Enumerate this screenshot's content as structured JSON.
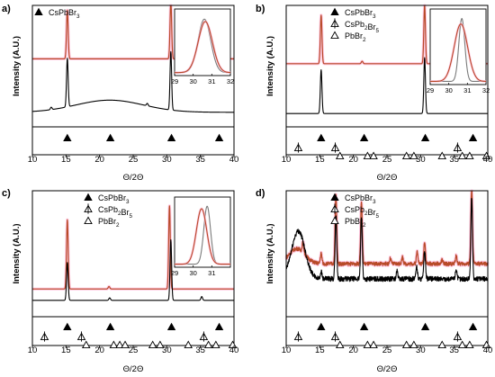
{
  "figure": {
    "panels": [
      {
        "label": "a)"
      },
      {
        "label": "b)"
      },
      {
        "label": "c)"
      },
      {
        "label": "d)"
      }
    ],
    "colors": {
      "raw_trace": "#000000",
      "fit_trace": "#b84a28",
      "fit_halo": "#ffb8d8",
      "inset_stroke": "#7a7a7a"
    }
  },
  "chart_data": [
    {
      "type": "line",
      "panel": "a)",
      "xlabel": "Θ/2Θ",
      "ylabel": "Intensity (A.U.)",
      "xlim": [
        10,
        40
      ],
      "xticks": [
        10,
        15,
        20,
        25,
        30,
        35,
        40
      ],
      "legend": [
        {
          "marker": "filled-triangle",
          "label": "CsPbBr3",
          "label_sub": {
            "text": "CsPbBr",
            "sub": "3"
          }
        }
      ],
      "reference_markers": [
        {
          "phase": "CsPbBr3",
          "marker": "filled-triangle",
          "x": [
            15.2,
            21.6,
            30.7,
            37.8
          ]
        }
      ],
      "series": [
        {
          "role": "upper",
          "color": "#b84a28",
          "baseline": 0.56,
          "peaks": [
            {
              "x": 15.2,
              "height": 0.4
            },
            {
              "x": 30.6,
              "height": 0.48
            }
          ]
        },
        {
          "role": "lower",
          "color": "#000000",
          "baseline": 0.12,
          "hump": {
            "x": 21.5,
            "height": 0.1,
            "width": 5.0
          },
          "peaks": [
            {
              "x": 15.2,
              "height": 0.4
            },
            {
              "x": 30.6,
              "height": 0.48
            },
            {
              "x": 12.8,
              "height": 0.02
            },
            {
              "x": 27.1,
              "height": 0.02
            }
          ]
        }
      ],
      "inset": {
        "xlim": [
          29,
          32
        ],
        "xticks": [
          29,
          30,
          31,
          32
        ],
        "curves": [
          {
            "color": "#7a7a7a",
            "center": 30.6,
            "width": 0.34,
            "height": 0.9
          },
          {
            "color": "#b84a28",
            "center": 30.65,
            "width": 0.38,
            "height": 0.86
          }
        ]
      }
    },
    {
      "type": "line",
      "panel": "b)",
      "xlabel": "Θ/2Θ",
      "ylabel": "Intensity (A.U.)",
      "xlim": [
        10,
        40
      ],
      "xticks": [
        10,
        15,
        20,
        25,
        30,
        35,
        40
      ],
      "legend": [
        {
          "marker": "filled-triangle",
          "label": "CsPbBr3",
          "label_sub": {
            "text": "CsPbBr",
            "sub": "3"
          }
        },
        {
          "marker": "crossed-triangle",
          "label": "CsPb2Br5",
          "label_sub": {
            "text": "CsPb",
            "sub": "2",
            "text2": "Br",
            "sub2": "5"
          }
        },
        {
          "marker": "open-triangle",
          "label": "PbBr2",
          "label_sub": {
            "text": "PbBr",
            "sub": "2"
          }
        }
      ],
      "reference_markers": [
        {
          "phase": "CsPbBr3",
          "marker": "filled-triangle",
          "x": [
            15.2,
            21.6,
            30.7,
            37.8
          ]
        },
        {
          "phase": "CsPb2Br5",
          "marker": "crossed-triangle",
          "x": [
            11.8,
            17.3,
            35.5
          ]
        },
        {
          "phase": "PbBr2",
          "marker": "open-triangle",
          "x": [
            18.0,
            22.1,
            23.0,
            27.9,
            29.0,
            33.2,
            36.2,
            37.3,
            39.8
          ]
        }
      ],
      "series": [
        {
          "role": "upper",
          "color": "#b84a28",
          "baseline": 0.52,
          "peaks": [
            {
              "x": 15.2,
              "height": 0.4
            },
            {
              "x": 30.6,
              "height": 0.48
            },
            {
              "x": 21.3,
              "height": 0.02
            },
            {
              "x": 35.2,
              "height": 0.02
            }
          ]
        },
        {
          "role": "lower",
          "color": "#000000",
          "baseline": 0.11,
          "peaks": [
            {
              "x": 15.2,
              "height": 0.36
            },
            {
              "x": 30.6,
              "height": 0.46
            }
          ]
        }
      ],
      "inset": {
        "xlim": [
          29,
          32
        ],
        "xticks": [
          29,
          30,
          31,
          32
        ],
        "curves": [
          {
            "color": "#7a7a7a",
            "center": 30.7,
            "width": 0.16,
            "height": 0.92
          },
          {
            "color": "#b84a28",
            "center": 30.65,
            "width": 0.36,
            "height": 0.84
          }
        ]
      }
    },
    {
      "type": "line",
      "panel": "c)",
      "xlabel": "Θ/2Θ",
      "ylabel": "Intensity (A.U.)",
      "xlim": [
        10,
        40
      ],
      "xticks": [
        10,
        15,
        20,
        25,
        30,
        35,
        40
      ],
      "legend": [
        {
          "marker": "filled-triangle",
          "label": "CsPbBr3",
          "label_sub": {
            "text": "CsPbBr",
            "sub": "3"
          }
        },
        {
          "marker": "crossed-triangle",
          "label": "CsPb2Br5",
          "label_sub": {
            "text": "CsPb",
            "sub": "2",
            "text2": "Br",
            "sub2": "5"
          }
        },
        {
          "marker": "open-triangle",
          "label": "PbBr2",
          "label_sub": {
            "text": "PbBr",
            "sub": "2"
          }
        }
      ],
      "reference_markers": [
        {
          "phase": "CsPbBr3",
          "marker": "filled-triangle",
          "x": [
            15.2,
            21.6,
            30.7,
            37.8
          ]
        },
        {
          "phase": "CsPb2Br5",
          "marker": "crossed-triangle",
          "x": [
            11.8,
            17.3,
            35.5
          ]
        },
        {
          "phase": "PbBr2",
          "marker": "open-triangle",
          "x": [
            18.0,
            22.1,
            23.0,
            23.8,
            27.9,
            29.0,
            33.2,
            36.2,
            37.3,
            39.8
          ]
        }
      ],
      "series": [
        {
          "role": "upper",
          "color": "#b84a28",
          "baseline": 0.22,
          "peaks": [
            {
              "x": 15.2,
              "height": 0.55
            },
            {
              "x": 30.4,
              "height": 0.66
            },
            {
              "x": 21.4,
              "height": 0.02
            }
          ]
        },
        {
          "role": "lower",
          "color": "#000000",
          "baseline": 0.13,
          "peaks": [
            {
              "x": 15.2,
              "height": 0.3
            },
            {
              "x": 30.6,
              "height": 0.48
            },
            {
              "x": 35.2,
              "height": 0.03
            },
            {
              "x": 21.5,
              "height": 0.02
            }
          ]
        }
      ],
      "inset": {
        "xlim": [
          29,
          32
        ],
        "xticks": [
          29,
          30,
          31
        ],
        "curves": [
          {
            "color": "#7a7a7a",
            "center": 30.75,
            "width": 0.18,
            "height": 0.92
          },
          {
            "color": "#b84a28",
            "center": 30.45,
            "width": 0.28,
            "height": 0.88
          }
        ]
      }
    },
    {
      "type": "line",
      "panel": "d)",
      "xlabel": "Θ/2Θ",
      "ylabel": "Intensity (A.U.)",
      "xlim": [
        10,
        40
      ],
      "xticks": [
        10,
        15,
        20,
        25,
        30,
        35,
        40
      ],
      "legend": [
        {
          "marker": "filled-triangle",
          "label": "CsPbBr3",
          "label_sub": {
            "text": "CsPbBr",
            "sub": "3"
          }
        },
        {
          "marker": "crossed-triangle",
          "label": "CsPb2Br5",
          "label_sub": {
            "text": "CsPb",
            "sub": "2",
            "text2": "Br",
            "sub2": "5"
          }
        },
        {
          "marker": "open-triangle",
          "label": "PbBr2",
          "label_sub": {
            "text": "PbBr",
            "sub": "2"
          }
        }
      ],
      "reference_markers": [
        {
          "phase": "CsPbBr3",
          "marker": "filled-triangle",
          "x": [
            15.2,
            21.6,
            30.7,
            37.8
          ]
        },
        {
          "phase": "CsPb2Br5",
          "marker": "crossed-triangle",
          "x": [
            11.8,
            17.3,
            35.5
          ]
        },
        {
          "phase": "PbBr2",
          "marker": "open-triangle",
          "x": [
            18.0,
            22.1,
            23.0,
            27.9,
            29.0,
            33.2,
            36.2,
            37.3,
            39.8
          ]
        }
      ],
      "series": [
        {
          "role": "upper",
          "color": "#b84a28",
          "baseline": 0.42,
          "noise": 0.015,
          "hump": {
            "x": 11.6,
            "height": 0.12,
            "width": 1.2
          },
          "peaks": [
            {
              "x": 17.4,
              "height": 0.55
            },
            {
              "x": 21.2,
              "height": 0.5
            },
            {
              "x": 37.6,
              "height": 0.6
            },
            {
              "x": 15.2,
              "height": 0.08
            },
            {
              "x": 12.5,
              "height": 0.08
            },
            {
              "x": 29.5,
              "height": 0.1
            },
            {
              "x": 30.6,
              "height": 0.18
            },
            {
              "x": 25.5,
              "height": 0.04
            },
            {
              "x": 27.3,
              "height": 0.05
            },
            {
              "x": 35.3,
              "height": 0.06
            },
            {
              "x": 33.2,
              "height": 0.03
            }
          ]
        },
        {
          "role": "lower",
          "color": "#000000",
          "baseline": 0.3,
          "noise": 0.02,
          "hump": {
            "x": 11.8,
            "height": 0.38,
            "width": 1.0
          },
          "peaks": [
            {
              "x": 17.4,
              "height": 0.5
            },
            {
              "x": 21.2,
              "height": 0.5
            },
            {
              "x": 37.6,
              "height": 0.65
            },
            {
              "x": 15.2,
              "height": 0.06
            },
            {
              "x": 30.6,
              "height": 0.22
            },
            {
              "x": 29.4,
              "height": 0.1
            },
            {
              "x": 26.5,
              "height": 0.06
            },
            {
              "x": 35.3,
              "height": 0.08
            }
          ]
        }
      ]
    }
  ]
}
